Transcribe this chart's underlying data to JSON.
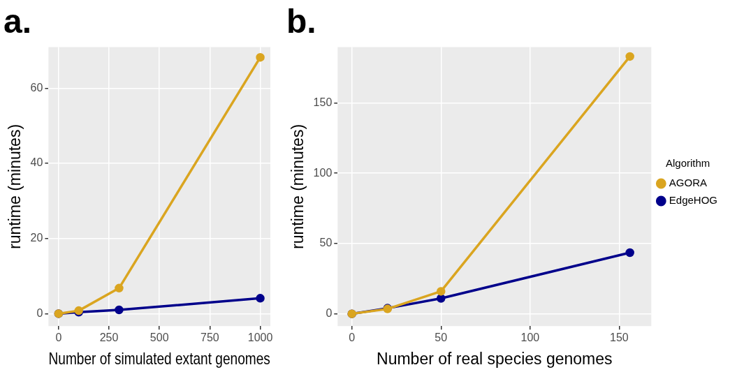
{
  "chart_data": [
    {
      "type": "line",
      "title": "a.",
      "xlabel": "Number of simulated extant genomes",
      "ylabel": "runtime (minutes)",
      "xlim": [
        -50,
        1050
      ],
      "xticks": [
        0,
        250,
        500,
        750,
        1000
      ],
      "ylim": [
        -3.3,
        70.9
      ],
      "yticks": [
        0,
        20,
        40,
        60
      ],
      "grid": true,
      "marker": "circle",
      "legend": false,
      "series": [
        {
          "color": "#daa520",
          "x": [
            0,
            100,
            300,
            1000
          ],
          "values": [
            0,
            0.8,
            6.8,
            68.2
          ]
        },
        {
          "color": "#00008b",
          "x": [
            0,
            100,
            300,
            1000
          ],
          "values": [
            0,
            0.4,
            1.0,
            4.1
          ]
        }
      ]
    },
    {
      "type": "line",
      "title": "b.",
      "xlabel": "Number of real species genomes",
      "ylabel": "runtime (minutes)",
      "legend_title": "Algorithm",
      "xlim": [
        -8,
        168
      ],
      "xticks": [
        0,
        50,
        100,
        150
      ],
      "ylim": [
        -8.7,
        189.6
      ],
      "yticks": [
        0,
        50,
        100,
        150
      ],
      "grid": true,
      "marker": "circle",
      "legend": "right",
      "series": [
        {
          "name": "AGORA",
          "color": "#daa520",
          "x": [
            0,
            20,
            50,
            156
          ],
          "values": [
            0,
            3.5,
            16,
            183
          ]
        },
        {
          "name": "EdgeHOG",
          "color": "#00008b",
          "x": [
            0,
            20,
            50,
            156
          ],
          "values": [
            0,
            4,
            11,
            43.5
          ]
        }
      ]
    }
  ]
}
